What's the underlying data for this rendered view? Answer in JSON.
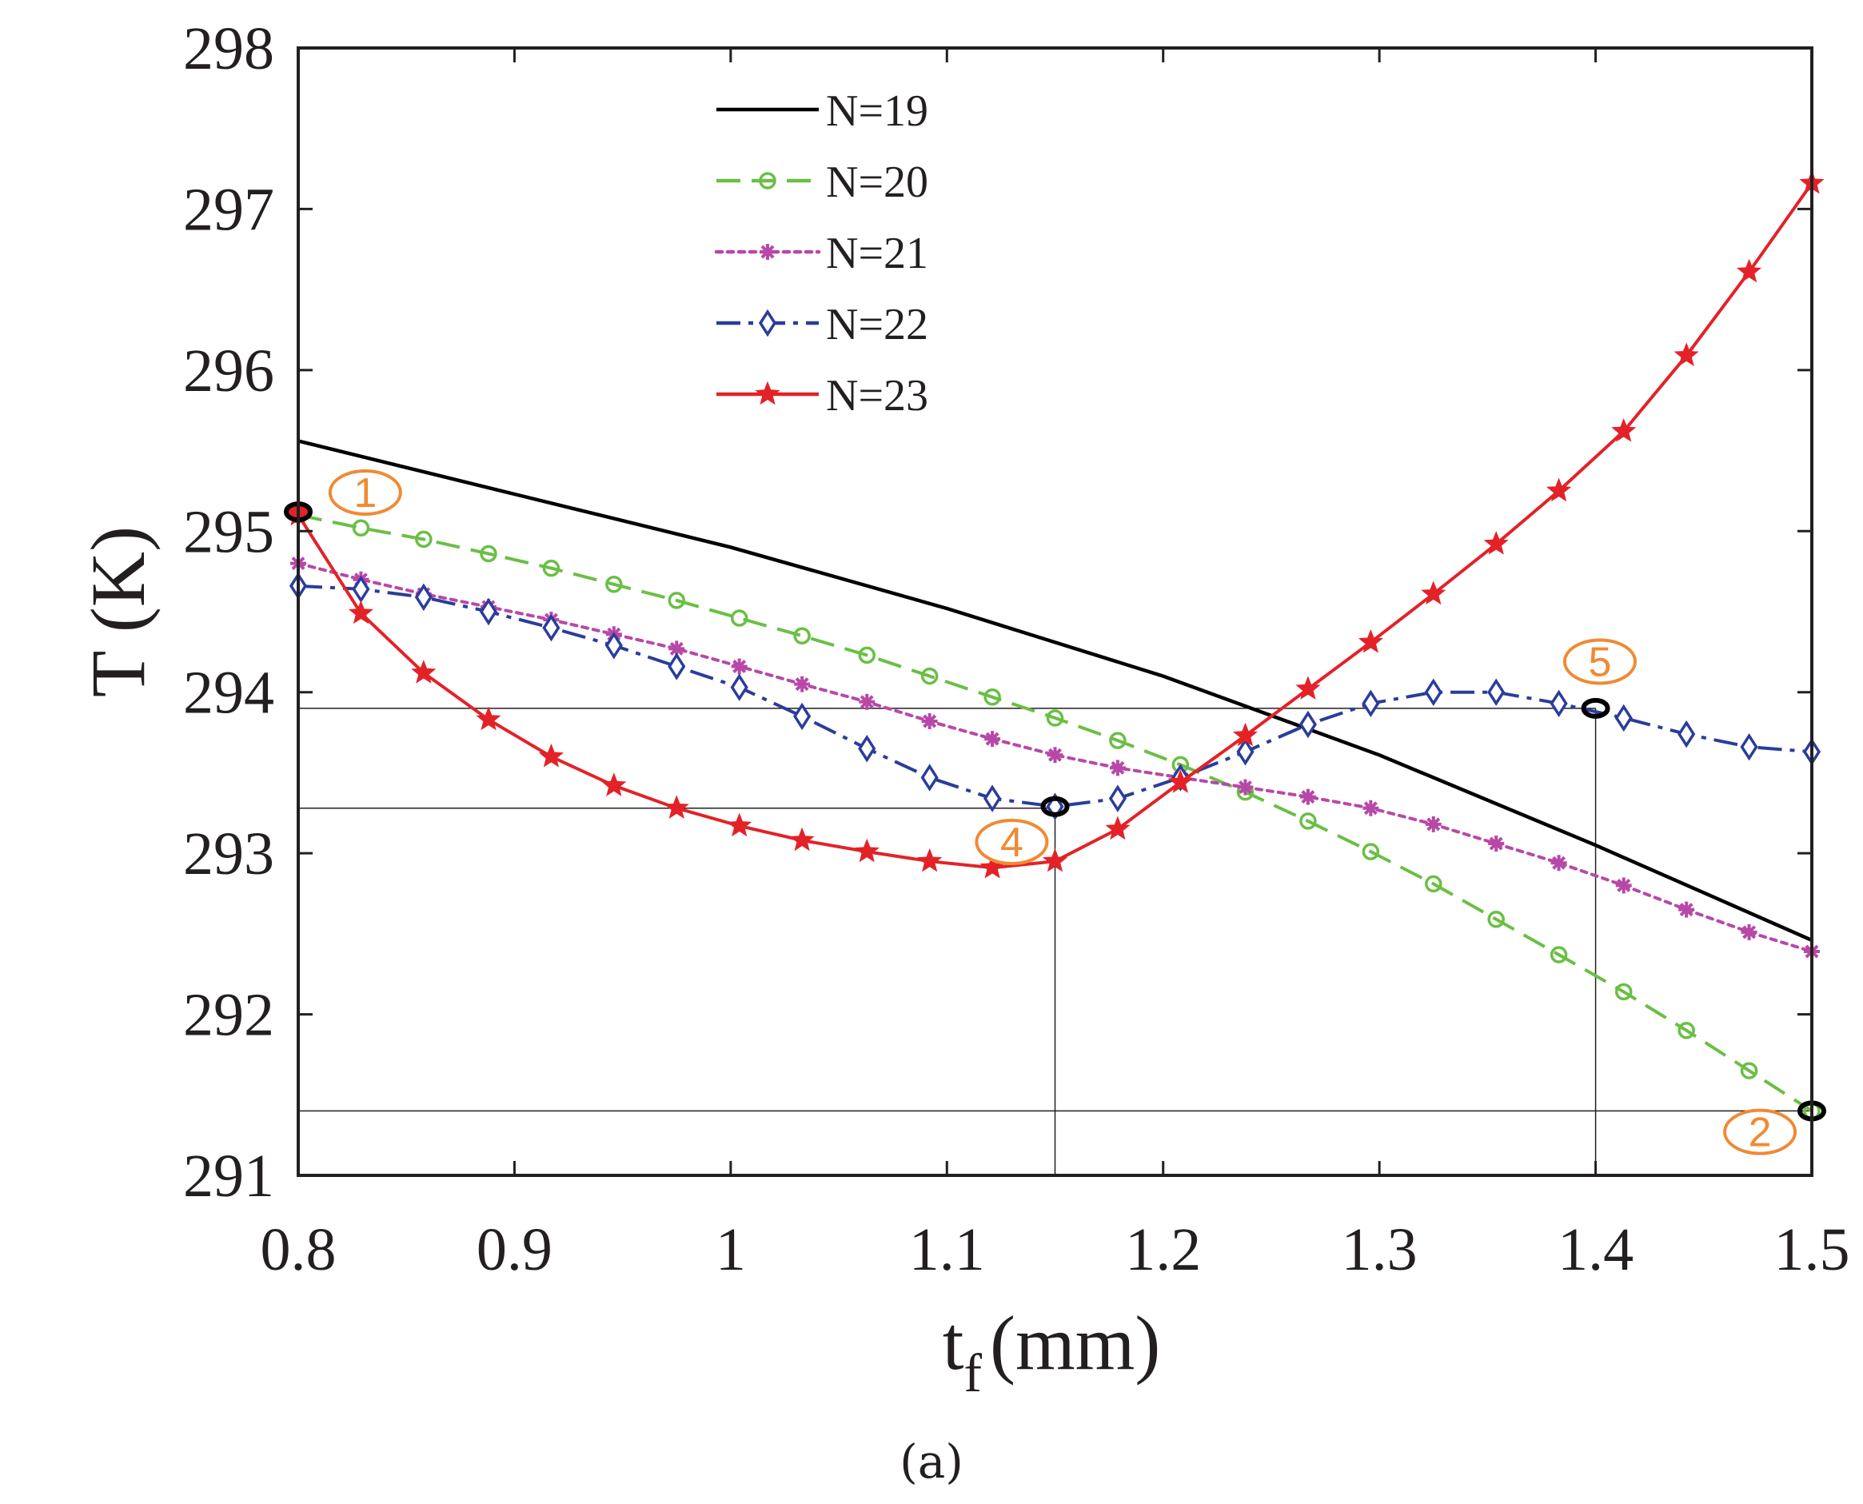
{
  "chart_data": {
    "type": "line",
    "xlabel": "t",
    "xlabel_subscript": "f",
    "xlabel_unit": "(mm)",
    "ylabel": "T (K)",
    "xlim": [
      0.8,
      1.5
    ],
    "ylim": [
      291,
      298
    ],
    "xticks": [
      0.8,
      0.9,
      1,
      1.1,
      1.2,
      1.3,
      1.4,
      1.5
    ],
    "xtick_labels": [
      "0.8",
      "0.9",
      "1",
      "1.1",
      "1.2",
      "1.3",
      "1.4",
      "1.5"
    ],
    "yticks": [
      291,
      292,
      293,
      294,
      295,
      296,
      297,
      298
    ],
    "ytick_labels": [
      "291",
      "292",
      "293",
      "294",
      "295",
      "296",
      "297",
      "298"
    ],
    "legend_position": "top-left",
    "series": [
      {
        "name": "N=19",
        "color": "#000000",
        "dash": "solid",
        "marker": "none",
        "x": [
          0.8,
          0.9,
          1.0,
          1.1,
          1.2,
          1.3,
          1.4,
          1.5
        ],
        "values": [
          295.56,
          295.23,
          294.9,
          294.52,
          294.1,
          293.61,
          293.05,
          292.46
        ]
      },
      {
        "name": "N=20",
        "color": "#6abf45",
        "dash": "dashed",
        "marker": "circle",
        "x": [
          0.8,
          0.829,
          0.858,
          0.888,
          0.917,
          0.946,
          0.975,
          1.004,
          1.033,
          1.063,
          1.092,
          1.121,
          1.15,
          1.179,
          1.208,
          1.238,
          1.267,
          1.296,
          1.325,
          1.354,
          1.383,
          1.413,
          1.442,
          1.471,
          1.5
        ],
        "values": [
          295.1,
          295.02,
          294.95,
          294.86,
          294.77,
          294.67,
          294.57,
          294.46,
          294.35,
          294.23,
          294.1,
          293.97,
          293.84,
          293.7,
          293.55,
          293.38,
          293.2,
          293.01,
          292.81,
          292.59,
          292.37,
          292.14,
          291.9,
          291.65,
          291.4
        ]
      },
      {
        "name": "N=21",
        "color": "#b848a8",
        "dash": "dotted",
        "marker": "asterisk",
        "x": [
          0.8,
          0.829,
          0.858,
          0.888,
          0.917,
          0.946,
          0.975,
          1.004,
          1.033,
          1.063,
          1.092,
          1.121,
          1.15,
          1.179,
          1.208,
          1.238,
          1.267,
          1.296,
          1.325,
          1.354,
          1.383,
          1.413,
          1.442,
          1.471,
          1.5
        ],
        "values": [
          294.8,
          294.7,
          294.61,
          294.53,
          294.45,
          294.36,
          294.27,
          294.16,
          294.05,
          293.94,
          293.82,
          293.71,
          293.61,
          293.53,
          293.47,
          293.41,
          293.35,
          293.28,
          293.18,
          293.06,
          292.94,
          292.8,
          292.65,
          292.51,
          292.39
        ]
      },
      {
        "name": "N=22",
        "color": "#2a3d9b",
        "dash": "dashdot",
        "marker": "diamond",
        "x": [
          0.8,
          0.829,
          0.858,
          0.888,
          0.917,
          0.946,
          0.975,
          1.004,
          1.033,
          1.063,
          1.092,
          1.121,
          1.15,
          1.179,
          1.208,
          1.238,
          1.267,
          1.296,
          1.325,
          1.354,
          1.383,
          1.413,
          1.442,
          1.471,
          1.5
        ],
        "values": [
          294.66,
          294.64,
          294.59,
          294.5,
          294.4,
          294.29,
          294.16,
          294.03,
          293.85,
          293.65,
          293.47,
          293.34,
          293.29,
          293.34,
          293.47,
          293.63,
          293.8,
          293.93,
          294.0,
          294.0,
          293.93,
          293.84,
          293.74,
          293.66,
          293.63
        ]
      },
      {
        "name": "N=23",
        "color": "#e32228",
        "dash": "solid",
        "marker": "star",
        "x": [
          0.8,
          0.829,
          0.858,
          0.888,
          0.917,
          0.946,
          0.975,
          1.004,
          1.033,
          1.063,
          1.092,
          1.121,
          1.15,
          1.179,
          1.208,
          1.238,
          1.267,
          1.296,
          1.325,
          1.354,
          1.383,
          1.413,
          1.442,
          1.471,
          1.5
        ],
        "values": [
          295.1,
          294.49,
          294.12,
          293.83,
          293.6,
          293.42,
          293.28,
          293.17,
          293.08,
          293.01,
          292.95,
          292.91,
          292.95,
          293.15,
          293.44,
          293.73,
          294.02,
          294.31,
          294.61,
          294.92,
          295.25,
          295.62,
          296.09,
          296.61,
          297.16
        ]
      }
    ],
    "reference_lines": [
      {
        "axis": "y",
        "value": 293.9,
        "x_from": 0.8,
        "x_to": 1.4
      },
      {
        "axis": "y",
        "value": 293.28,
        "x_from": 0.8,
        "x_to": 1.15
      },
      {
        "axis": "y",
        "value": 291.4,
        "x_from": 0.8,
        "x_to": 1.5
      },
      {
        "axis": "x",
        "value": 1.15,
        "y_from": 291,
        "y_to": 293.28
      },
      {
        "axis": "x",
        "value": 1.4,
        "y_from": 291,
        "y_to": 293.9
      }
    ],
    "highlights": [
      {
        "x": 0.8,
        "y": 295.12,
        "fill": "#e32228"
      },
      {
        "x": 1.15,
        "y": 293.29,
        "fill": "none"
      },
      {
        "x": 1.4,
        "y": 293.9,
        "fill": "none"
      },
      {
        "x": 1.5,
        "y": 291.4,
        "fill": "none"
      }
    ],
    "annotations": [
      {
        "label": "1",
        "x": 0.831,
        "y": 295.24
      },
      {
        "label": "4",
        "x": 1.13,
        "y": 293.07
      },
      {
        "label": "5",
        "x": 1.402,
        "y": 294.19
      },
      {
        "label": "2",
        "x": 1.476,
        "y": 291.27
      }
    ]
  },
  "caption": "(a)"
}
